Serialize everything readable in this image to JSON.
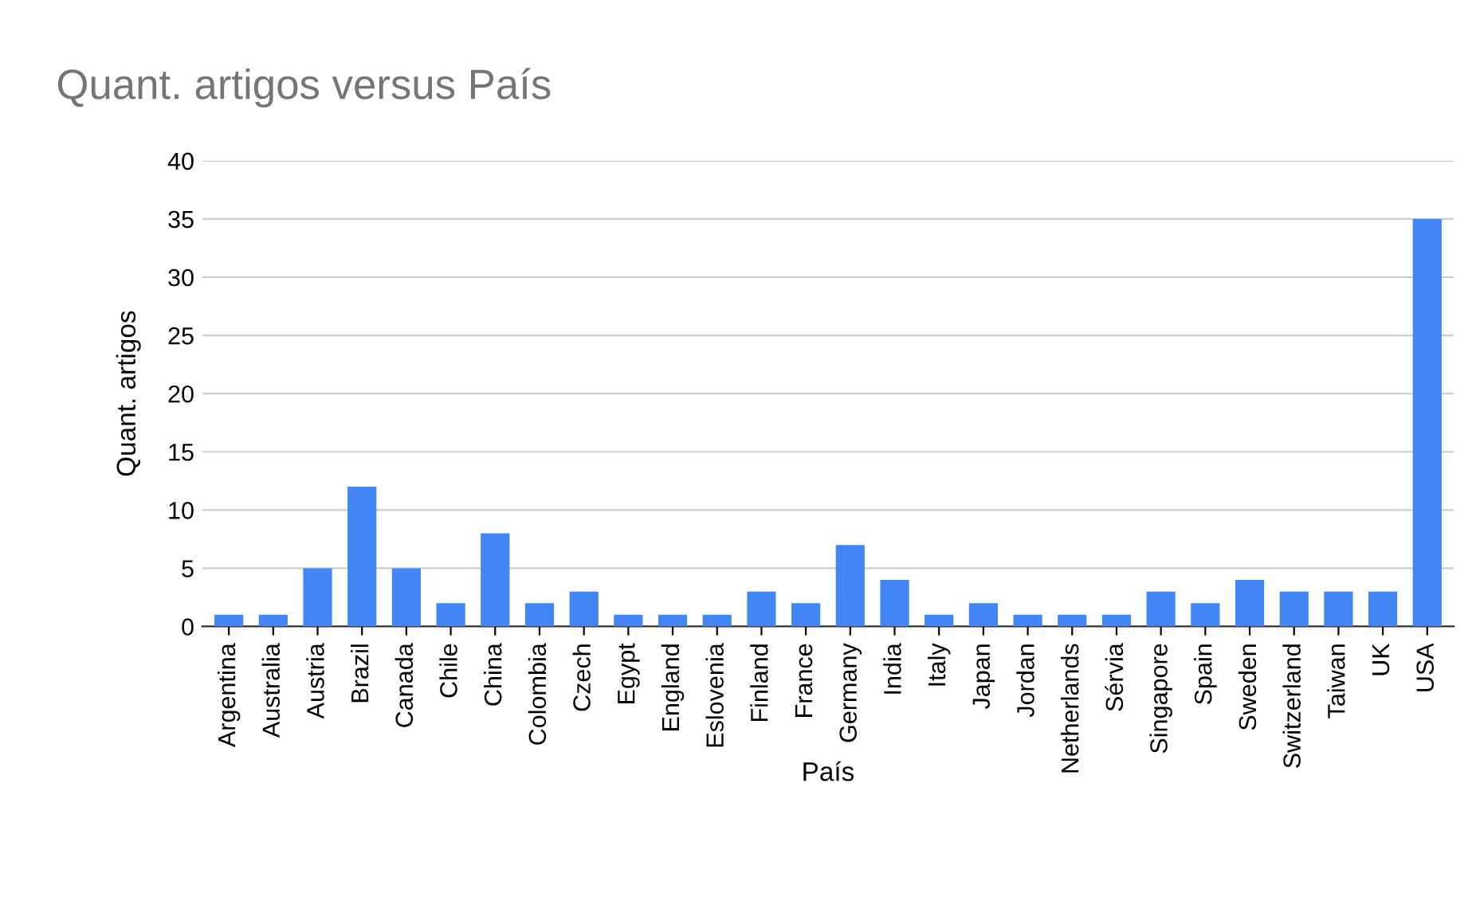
{
  "chart_data": {
    "type": "bar",
    "title": "Quant. artigos versus País",
    "xlabel": "País",
    "ylabel": "Quant. artigos",
    "categories": [
      "Argentina",
      "Australia",
      "Austria",
      "Brazil",
      "Canada",
      "Chile",
      "China",
      "Colombia",
      "Czech",
      "Egypt",
      "England",
      "Eslovenia",
      "Finland",
      "France",
      "Germany",
      "India",
      "Italy",
      "Japan",
      "Jordan",
      "Netherlands",
      "Sérvia",
      "Singapore",
      "Spain",
      "Sweden",
      "Switzerland",
      "Taiwan",
      "UK",
      "USA"
    ],
    "values": [
      1,
      1,
      5,
      12,
      5,
      2,
      8,
      2,
      3,
      1,
      1,
      1,
      3,
      2,
      7,
      4,
      1,
      2,
      1,
      1,
      1,
      3,
      2,
      4,
      3,
      3,
      3,
      35
    ],
    "color": "#4285f4",
    "ylim": [
      0,
      40
    ],
    "yticks": [
      0,
      5,
      10,
      15,
      20,
      25,
      30,
      35,
      40
    ],
    "grid": "y"
  }
}
